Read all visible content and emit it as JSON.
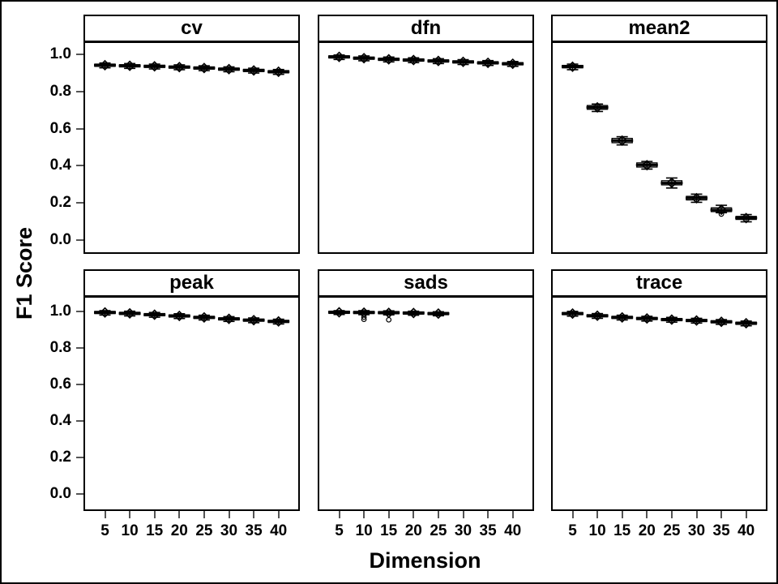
{
  "chart_data": {
    "type": "boxplot",
    "title": "",
    "xlabel": "Dimension",
    "ylabel": "F1 Score",
    "layout": {
      "rows": 2,
      "cols": 3,
      "grid": false,
      "legend": "none"
    },
    "ylim": [
      -0.07,
      1.07
    ],
    "y_ticks": [
      1.0,
      0.8,
      0.6,
      0.4,
      0.2,
      0.0
    ],
    "y_tick_labels": [
      "1.0",
      "0.8",
      "0.6",
      "0.4",
      "0.2",
      "0.0"
    ],
    "x_ticks": [
      5,
      10,
      15,
      20,
      25,
      30,
      35,
      40
    ],
    "x_tick_labels": [
      "5",
      "10",
      "15",
      "20",
      "25",
      "30",
      "35",
      "40"
    ],
    "marker_legend": {
      "diamond": "mean",
      "thick-line": "median",
      "circle": "outlier"
    },
    "panels": [
      {
        "title": "cv",
        "boxes": [
          {
            "x": 5,
            "median": 0.937,
            "mean": 0.937,
            "q1": 0.931,
            "q3": 0.943,
            "lo": 0.923,
            "hi": 0.949,
            "outliers": []
          },
          {
            "x": 10,
            "median": 0.934,
            "mean": 0.934,
            "q1": 0.928,
            "q3": 0.94,
            "lo": 0.92,
            "hi": 0.946,
            "outliers": []
          },
          {
            "x": 15,
            "median": 0.931,
            "mean": 0.931,
            "q1": 0.925,
            "q3": 0.937,
            "lo": 0.917,
            "hi": 0.943,
            "outliers": []
          },
          {
            "x": 20,
            "median": 0.927,
            "mean": 0.927,
            "q1": 0.921,
            "q3": 0.933,
            "lo": 0.913,
            "hi": 0.939,
            "outliers": []
          },
          {
            "x": 25,
            "median": 0.922,
            "mean": 0.922,
            "q1": 0.916,
            "q3": 0.928,
            "lo": 0.908,
            "hi": 0.934,
            "outliers": []
          },
          {
            "x": 30,
            "median": 0.916,
            "mean": 0.916,
            "q1": 0.91,
            "q3": 0.922,
            "lo": 0.902,
            "hi": 0.928,
            "outliers": []
          },
          {
            "x": 35,
            "median": 0.909,
            "mean": 0.909,
            "q1": 0.903,
            "q3": 0.915,
            "lo": 0.895,
            "hi": 0.921,
            "outliers": []
          },
          {
            "x": 40,
            "median": 0.902,
            "mean": 0.902,
            "q1": 0.896,
            "q3": 0.908,
            "lo": 0.888,
            "hi": 0.914,
            "outliers": []
          }
        ]
      },
      {
        "title": "dfn",
        "boxes": [
          {
            "x": 5,
            "median": 0.982,
            "mean": 0.982,
            "q1": 0.976,
            "q3": 0.988,
            "lo": 0.968,
            "hi": 0.992,
            "outliers": []
          },
          {
            "x": 10,
            "median": 0.975,
            "mean": 0.975,
            "q1": 0.969,
            "q3": 0.981,
            "lo": 0.961,
            "hi": 0.987,
            "outliers": []
          },
          {
            "x": 15,
            "median": 0.969,
            "mean": 0.969,
            "q1": 0.963,
            "q3": 0.975,
            "lo": 0.955,
            "hi": 0.981,
            "outliers": []
          },
          {
            "x": 20,
            "median": 0.965,
            "mean": 0.965,
            "q1": 0.959,
            "q3": 0.971,
            "lo": 0.951,
            "hi": 0.977,
            "outliers": []
          },
          {
            "x": 25,
            "median": 0.96,
            "mean": 0.96,
            "q1": 0.954,
            "q3": 0.966,
            "lo": 0.946,
            "hi": 0.972,
            "outliers": []
          },
          {
            "x": 30,
            "median": 0.955,
            "mean": 0.955,
            "q1": 0.949,
            "q3": 0.961,
            "lo": 0.941,
            "hi": 0.967,
            "outliers": []
          },
          {
            "x": 35,
            "median": 0.95,
            "mean": 0.95,
            "q1": 0.944,
            "q3": 0.956,
            "lo": 0.936,
            "hi": 0.962,
            "outliers": []
          },
          {
            "x": 40,
            "median": 0.945,
            "mean": 0.945,
            "q1": 0.939,
            "q3": 0.951,
            "lo": 0.931,
            "hi": 0.957,
            "outliers": []
          }
        ]
      },
      {
        "title": "mean2",
        "boxes": [
          {
            "x": 5,
            "median": 0.93,
            "mean": 0.929,
            "q1": 0.923,
            "q3": 0.936,
            "lo": 0.913,
            "hi": 0.943,
            "outliers": []
          },
          {
            "x": 10,
            "median": 0.71,
            "mean": 0.71,
            "q1": 0.7,
            "q3": 0.72,
            "lo": 0.688,
            "hi": 0.728,
            "outliers": []
          },
          {
            "x": 15,
            "median": 0.531,
            "mean": 0.531,
            "q1": 0.52,
            "q3": 0.543,
            "lo": 0.508,
            "hi": 0.552,
            "outliers": []
          },
          {
            "x": 20,
            "median": 0.4,
            "mean": 0.399,
            "q1": 0.389,
            "q3": 0.411,
            "lo": 0.378,
            "hi": 0.419,
            "outliers": []
          },
          {
            "x": 25,
            "median": 0.303,
            "mean": 0.304,
            "q1": 0.293,
            "q3": 0.315,
            "lo": 0.276,
            "hi": 0.33,
            "outliers": []
          },
          {
            "x": 30,
            "median": 0.222,
            "mean": 0.221,
            "q1": 0.212,
            "q3": 0.231,
            "lo": 0.199,
            "hi": 0.243,
            "outliers": []
          },
          {
            "x": 35,
            "median": 0.158,
            "mean": 0.159,
            "q1": 0.149,
            "q3": 0.169,
            "lo": 0.143,
            "hi": 0.183,
            "outliers": [
              0.136
            ]
          },
          {
            "x": 40,
            "median": 0.115,
            "mean": 0.114,
            "q1": 0.107,
            "q3": 0.123,
            "lo": 0.094,
            "hi": 0.133,
            "outliers": []
          }
        ]
      },
      {
        "title": "peak",
        "boxes": [
          {
            "x": 5,
            "median": 0.99,
            "mean": 0.99,
            "q1": 0.984,
            "q3": 0.996,
            "lo": 0.976,
            "hi": 1.0,
            "outliers": []
          },
          {
            "x": 10,
            "median": 0.985,
            "mean": 0.985,
            "q1": 0.979,
            "q3": 0.991,
            "lo": 0.971,
            "hi": 0.997,
            "outliers": []
          },
          {
            "x": 15,
            "median": 0.978,
            "mean": 0.978,
            "q1": 0.972,
            "q3": 0.984,
            "lo": 0.964,
            "hi": 0.99,
            "outliers": []
          },
          {
            "x": 20,
            "median": 0.971,
            "mean": 0.971,
            "q1": 0.965,
            "q3": 0.977,
            "lo": 0.957,
            "hi": 0.983,
            "outliers": []
          },
          {
            "x": 25,
            "median": 0.963,
            "mean": 0.963,
            "q1": 0.957,
            "q3": 0.969,
            "lo": 0.949,
            "hi": 0.975,
            "outliers": []
          },
          {
            "x": 30,
            "median": 0.955,
            "mean": 0.955,
            "q1": 0.949,
            "q3": 0.961,
            "lo": 0.941,
            "hi": 0.967,
            "outliers": []
          },
          {
            "x": 35,
            "median": 0.948,
            "mean": 0.948,
            "q1": 0.942,
            "q3": 0.954,
            "lo": 0.934,
            "hi": 0.96,
            "outliers": []
          },
          {
            "x": 40,
            "median": 0.941,
            "mean": 0.941,
            "q1": 0.935,
            "q3": 0.947,
            "lo": 0.927,
            "hi": 0.953,
            "outliers": []
          }
        ]
      },
      {
        "title": "sads",
        "boxes": [
          {
            "x": 5,
            "median": 0.991,
            "mean": 0.991,
            "q1": 0.985,
            "q3": 0.997,
            "lo": 0.979,
            "hi": 1.0,
            "outliers": []
          },
          {
            "x": 10,
            "median": 0.99,
            "mean": 0.989,
            "q1": 0.984,
            "q3": 0.996,
            "lo": 0.978,
            "hi": 1.0,
            "outliers": [
              0.965,
              0.953
            ]
          },
          {
            "x": 15,
            "median": 0.989,
            "mean": 0.988,
            "q1": 0.983,
            "q3": 0.995,
            "lo": 0.977,
            "hi": 0.999,
            "outliers": [
              0.95
            ]
          },
          {
            "x": 20,
            "median": 0.987,
            "mean": 0.987,
            "q1": 0.981,
            "q3": 0.993,
            "lo": 0.975,
            "hi": 0.997,
            "outliers": []
          },
          {
            "x": 25,
            "median": 0.984,
            "mean": 0.984,
            "q1": 0.978,
            "q3": 0.99,
            "lo": 0.972,
            "hi": 0.994,
            "outliers": []
          }
        ]
      },
      {
        "title": "trace",
        "boxes": [
          {
            "x": 5,
            "median": 0.984,
            "mean": 0.984,
            "q1": 0.978,
            "q3": 0.99,
            "lo": 0.97,
            "hi": 0.996,
            "outliers": []
          },
          {
            "x": 10,
            "median": 0.972,
            "mean": 0.972,
            "q1": 0.966,
            "q3": 0.978,
            "lo": 0.958,
            "hi": 0.984,
            "outliers": []
          },
          {
            "x": 15,
            "median": 0.963,
            "mean": 0.963,
            "q1": 0.957,
            "q3": 0.969,
            "lo": 0.949,
            "hi": 0.975,
            "outliers": []
          },
          {
            "x": 20,
            "median": 0.957,
            "mean": 0.957,
            "q1": 0.951,
            "q3": 0.963,
            "lo": 0.943,
            "hi": 0.969,
            "outliers": []
          },
          {
            "x": 25,
            "median": 0.951,
            "mean": 0.951,
            "q1": 0.945,
            "q3": 0.957,
            "lo": 0.937,
            "hi": 0.963,
            "outliers": []
          },
          {
            "x": 30,
            "median": 0.946,
            "mean": 0.946,
            "q1": 0.94,
            "q3": 0.952,
            "lo": 0.932,
            "hi": 0.958,
            "outliers": []
          },
          {
            "x": 35,
            "median": 0.939,
            "mean": 0.939,
            "q1": 0.933,
            "q3": 0.945,
            "lo": 0.925,
            "hi": 0.951,
            "outliers": []
          },
          {
            "x": 40,
            "median": 0.931,
            "mean": 0.931,
            "q1": 0.925,
            "q3": 0.937,
            "lo": 0.917,
            "hi": 0.943,
            "outliers": []
          }
        ]
      }
    ],
    "colors": {
      "stroke": "#000000",
      "tick": "#555555",
      "background": "#ffffff"
    }
  }
}
